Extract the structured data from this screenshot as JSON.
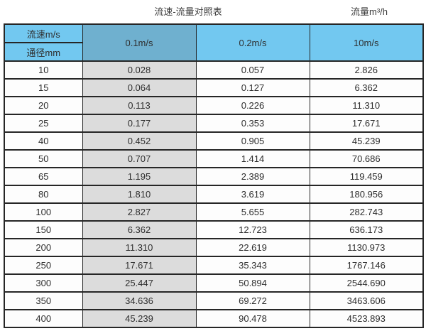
{
  "header": {
    "title": "流速-流量对照表",
    "unit_label": "流量m³/h"
  },
  "table": {
    "corner_top": "流速m/s",
    "corner_bottom": "通径mm",
    "columns": [
      "0.1m/s",
      "0.2m/s",
      "10m/s"
    ],
    "rows": [
      {
        "diameter": "10",
        "values": [
          "0.028",
          "0.057",
          "2.826"
        ]
      },
      {
        "diameter": "15",
        "values": [
          "0.064",
          "0.127",
          "6.362"
        ]
      },
      {
        "diameter": "20",
        "values": [
          "0.113",
          "0.226",
          "11.310"
        ]
      },
      {
        "diameter": "25",
        "values": [
          "0.177",
          "0.353",
          "17.671"
        ]
      },
      {
        "diameter": "40",
        "values": [
          "0.452",
          "0.905",
          "45.239"
        ]
      },
      {
        "diameter": "50",
        "values": [
          "0.707",
          "1.414",
          "70.686"
        ]
      },
      {
        "diameter": "65",
        "values": [
          "1.195",
          "2.389",
          "119.459"
        ]
      },
      {
        "diameter": "80",
        "values": [
          "1.810",
          "3.619",
          "180.956"
        ]
      },
      {
        "diameter": "100",
        "values": [
          "2.827",
          "5.655",
          "282.743"
        ]
      },
      {
        "diameter": "150",
        "values": [
          "6.362",
          "12.723",
          "636.173"
        ]
      },
      {
        "diameter": "200",
        "values": [
          "11.310",
          "22.619",
          "1130.973"
        ]
      },
      {
        "diameter": "250",
        "values": [
          "17.671",
          "35.343",
          "1767.146"
        ]
      },
      {
        "diameter": "300",
        "values": [
          "25.447",
          "50.894",
          "2544.690"
        ]
      },
      {
        "diameter": "350",
        "values": [
          "34.636",
          "69.272",
          "3463.606"
        ]
      },
      {
        "diameter": "400",
        "values": [
          "45.239",
          "90.478",
          "4523.893"
        ]
      }
    ]
  },
  "colors": {
    "header_blue": "#72c8f0",
    "header_blue_dark": "#6fb0cf",
    "column_gray": "#dcdcdc",
    "border": "#262626",
    "text": "#333333"
  },
  "chart_data": {
    "type": "table",
    "title": "流速-流量对照表",
    "value_unit": "流量m³/h",
    "row_header_label": "通径mm",
    "col_header_label": "流速m/s",
    "columns": [
      "0.1m/s",
      "0.2m/s",
      "10m/s"
    ],
    "diameters_mm": [
      10,
      15,
      20,
      25,
      40,
      50,
      65,
      80,
      100,
      150,
      200,
      250,
      300,
      350,
      400
    ],
    "series": [
      {
        "name": "0.1m/s",
        "values": [
          0.028,
          0.064,
          0.113,
          0.177,
          0.452,
          0.707,
          1.195,
          1.81,
          2.827,
          6.362,
          11.31,
          17.671,
          25.447,
          34.636,
          45.239
        ]
      },
      {
        "name": "0.2m/s",
        "values": [
          0.057,
          0.127,
          0.226,
          0.353,
          0.905,
          1.414,
          2.389,
          3.619,
          5.655,
          12.723,
          22.619,
          35.343,
          50.894,
          69.272,
          90.478
        ]
      },
      {
        "name": "10m/s",
        "values": [
          2.826,
          6.362,
          11.31,
          17.671,
          45.239,
          70.686,
          119.459,
          180.956,
          282.743,
          636.173,
          1130.973,
          1767.146,
          2544.69,
          3463.606,
          4523.893
        ]
      }
    ]
  }
}
